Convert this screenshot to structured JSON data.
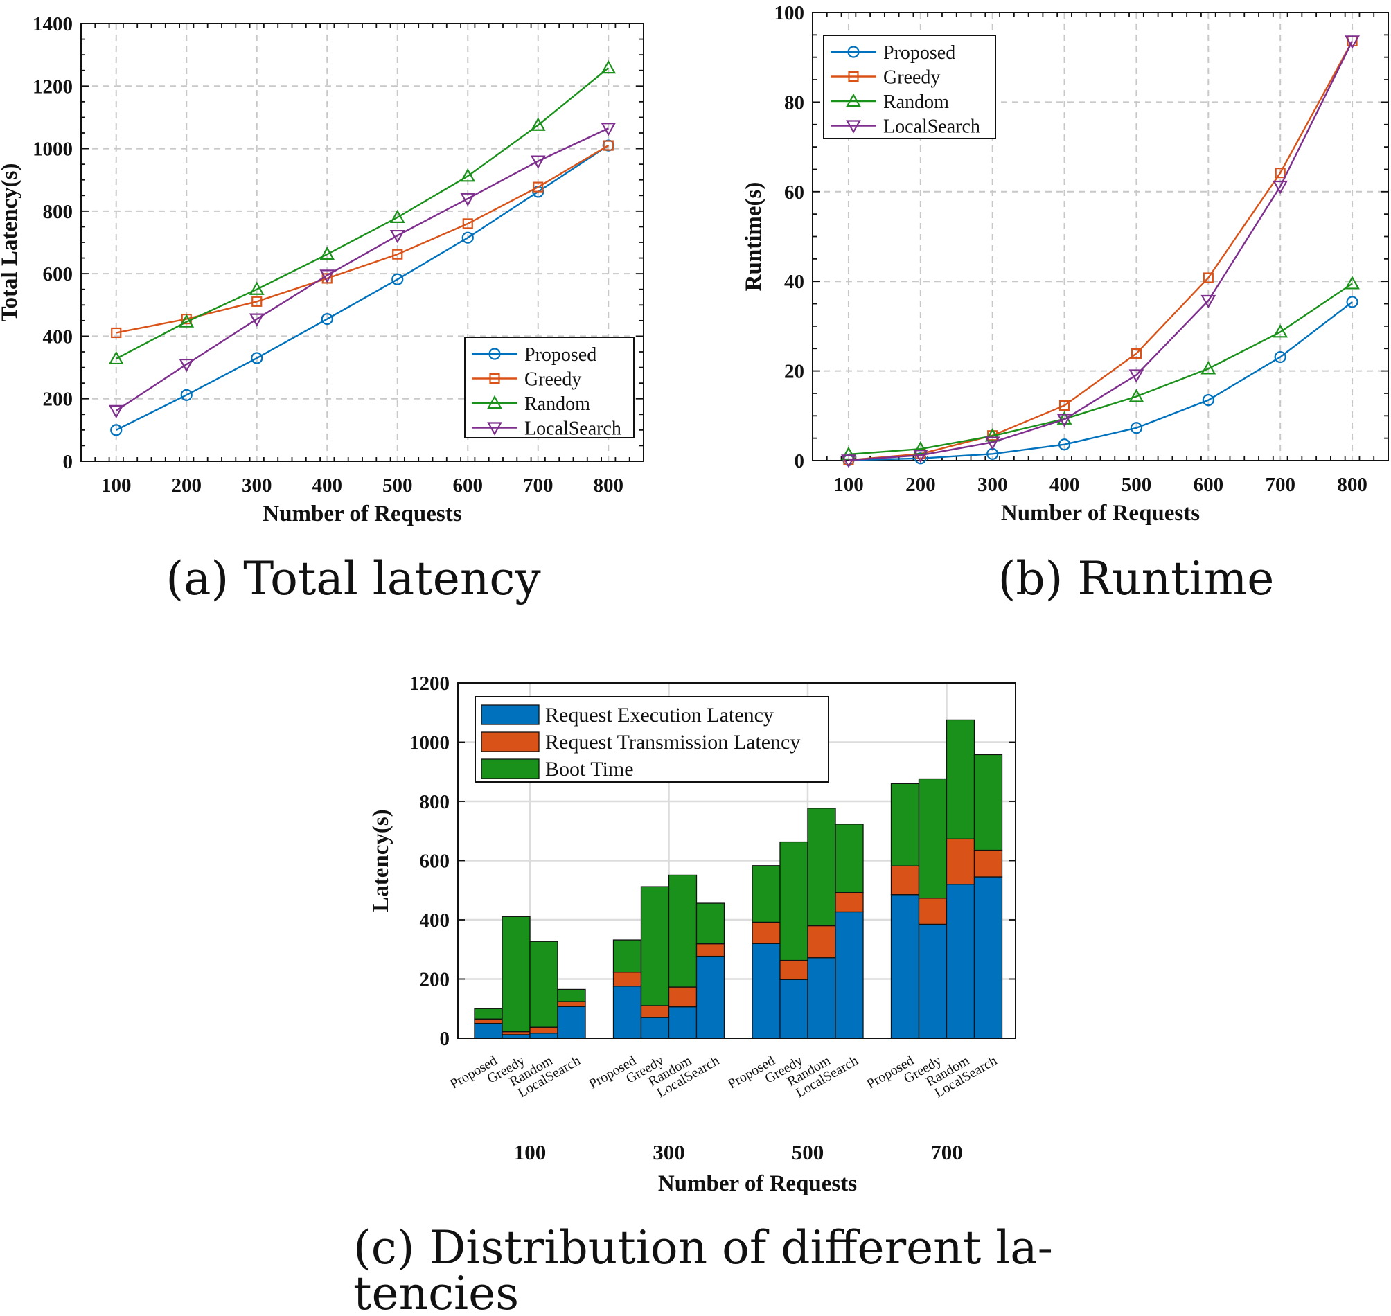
{
  "colors": {
    "proposed": "#0072BD",
    "greedy": "#D95319",
    "random": "#1A911A",
    "localsearch": "#7E2F8E",
    "exec": "#0072BD",
    "trans": "#D95319",
    "boot": "#1A911A"
  },
  "captions": {
    "a": "(a) Total latency",
    "b": "(b) Runtime",
    "c_line1": "(c) Distribution of different la-",
    "c_line2": "tencies"
  },
  "chart_data": [
    {
      "id": "a",
      "type": "line",
      "xlabel": "Number of Requests",
      "ylabel": "Total Latency(s)",
      "x": [
        100,
        200,
        300,
        400,
        500,
        600,
        700,
        800
      ],
      "xlim": [
        50,
        850
      ],
      "ylim": [
        0,
        1400
      ],
      "yticks": [
        0,
        200,
        400,
        600,
        800,
        1000,
        1200,
        1400
      ],
      "grid": true,
      "legend_position": "bottom-right",
      "series": [
        {
          "name": "Proposed",
          "key": "proposed",
          "marker": "circle",
          "values": [
            100,
            212,
            330,
            455,
            582,
            715,
            862,
            1010
          ]
        },
        {
          "name": "Greedy",
          "key": "greedy",
          "marker": "square",
          "values": [
            411,
            455,
            511,
            585,
            662,
            760,
            877,
            1010
          ]
        },
        {
          "name": "Random",
          "key": "random",
          "marker": "triangle-up",
          "values": [
            328,
            446,
            550,
            662,
            780,
            912,
            1075,
            1258
          ]
        },
        {
          "name": "LocalSearch",
          "key": "localsearch",
          "marker": "triangle-down",
          "values": [
            162,
            310,
            455,
            595,
            722,
            840,
            960,
            1065
          ]
        }
      ]
    },
    {
      "id": "b",
      "type": "line",
      "xlabel": "Number of Requests",
      "ylabel": "Runtime(s)",
      "x": [
        100,
        200,
        300,
        400,
        500,
        600,
        700,
        800
      ],
      "xlim": [
        50,
        850
      ],
      "ylim": [
        0,
        100
      ],
      "yticks": [
        0,
        20,
        40,
        60,
        80,
        100
      ],
      "grid": true,
      "legend_position": "top-left",
      "series": [
        {
          "name": "Proposed",
          "key": "proposed",
          "marker": "circle",
          "values": [
            0.1,
            0.5,
            1.5,
            3.6,
            7.3,
            13.5,
            23.1,
            35.4
          ]
        },
        {
          "name": "Greedy",
          "key": "greedy",
          "marker": "square",
          "values": [
            0.1,
            1.5,
            5.6,
            12.3,
            23.9,
            40.8,
            64.2,
            93.6
          ]
        },
        {
          "name": "Random",
          "key": "random",
          "marker": "triangle-up",
          "values": [
            1.4,
            2.6,
            5.5,
            9.3,
            14.3,
            20.5,
            28.7,
            39.5
          ]
        },
        {
          "name": "LocalSearch",
          "key": "localsearch",
          "marker": "triangle-down",
          "values": [
            0.1,
            1.2,
            4.1,
            9.2,
            19.1,
            35.7,
            61.2,
            93.6
          ]
        }
      ]
    },
    {
      "id": "c",
      "type": "bar",
      "stacked": true,
      "xlabel": "Number of Requests",
      "ylabel": "Latency(s)",
      "ylim": [
        0,
        1200
      ],
      "yticks": [
        0,
        200,
        400,
        600,
        800,
        1000,
        1200
      ],
      "grid": true,
      "legend_position": "top-left",
      "groups": [
        "100",
        "300",
        "500",
        "700"
      ],
      "categories": [
        "Proposed",
        "Greedy",
        "Random",
        "LocalSearch"
      ],
      "series": [
        {
          "name": "Request Execution Latency",
          "key": "exec",
          "values": [
            [
              50,
              12,
              17,
              107
            ],
            [
              176,
              70,
              106,
              277
            ],
            [
              320,
              198,
              272,
              427
            ],
            [
              485,
              385,
              520,
              545
            ]
          ]
        },
        {
          "name": "Request Transmission Latency",
          "key": "trans",
          "values": [
            [
              15,
              10,
              20,
              17
            ],
            [
              47,
              40,
              67,
              42
            ],
            [
              72,
              65,
              108,
              65
            ],
            [
              97,
              88,
              153,
              90
            ]
          ]
        },
        {
          "name": "Boot Time",
          "key": "boot",
          "values": [
            [
              35,
              389,
              290,
              41
            ],
            [
              109,
              402,
              378,
              137
            ],
            [
              191,
              400,
              397,
              231
            ],
            [
              278,
              403,
              402,
              323
            ]
          ]
        }
      ]
    }
  ]
}
